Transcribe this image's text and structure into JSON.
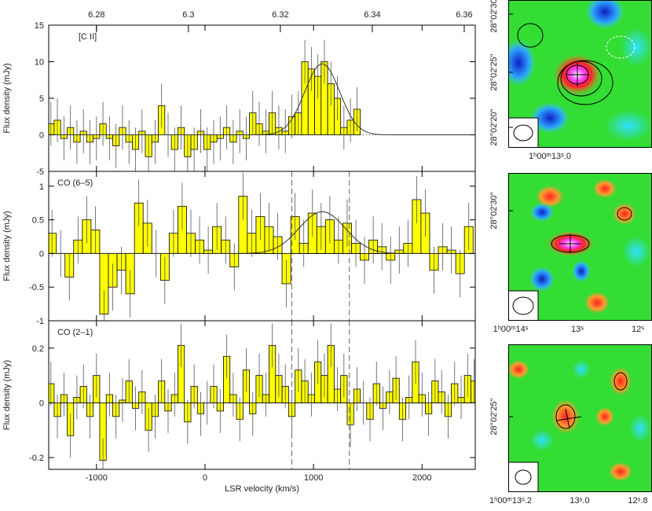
{
  "chart_data": [
    {
      "type": "histogram",
      "label": "[C II]",
      "ylabel": "Flux density (mJy)",
      "x": [
        -1420,
        -1360,
        -1300,
        -1240,
        -1180,
        -1120,
        -1060,
        -1000,
        -940,
        -880,
        -820,
        -760,
        -700,
        -640,
        -580,
        -520,
        -460,
        -400,
        -340,
        -280,
        -220,
        -160,
        -100,
        -40,
        20,
        80,
        140,
        200,
        260,
        320,
        380,
        440,
        500,
        560,
        620,
        680,
        740,
        800,
        860,
        920,
        980,
        1040,
        1100,
        1160,
        1220,
        1280,
        1340,
        1400
      ],
      "values": [
        1.5,
        2,
        -0.5,
        1,
        -1,
        0.5,
        -1,
        -0.5,
        1.5,
        -0.5,
        -1.5,
        1,
        -1,
        -2,
        0.5,
        -3,
        -1,
        4,
        0,
        -2,
        1,
        -3,
        -2,
        0.5,
        -2,
        -1,
        -0.5,
        1,
        -1,
        0.5,
        -0.5,
        3,
        1.5,
        0.5,
        3,
        1,
        0.5,
        2.5,
        3,
        10,
        9,
        8,
        10,
        7,
        5,
        1,
        2,
        3.5
      ],
      "error": 3,
      "color": "#ffff00",
      "fit": {
        "amplitude": 9.7,
        "center": 1080,
        "fwhm": 380
      },
      "xlim": [
        -1440,
        2490
      ],
      "xticks": [
        -1000,
        0,
        1000,
        2000
      ],
      "x2lim": [
        6.2696,
        6.3624
      ],
      "x2ticks": [
        6.28,
        6.3,
        6.32,
        6.34,
        6.36
      ],
      "ylim": [
        -5,
        15
      ],
      "yticks": [
        -5,
        0,
        5,
        10,
        15
      ]
    },
    {
      "type": "histogram",
      "label": "CO (6–5)",
      "ylabel": "Flux density (mJy)",
      "x": [
        -1410,
        -1330,
        -1250,
        -1170,
        -1090,
        -1010,
        -930,
        -850,
        -770,
        -690,
        -610,
        -530,
        -450,
        -370,
        -290,
        -210,
        -130,
        -50,
        30,
        110,
        190,
        270,
        350,
        430,
        510,
        590,
        670,
        750,
        830,
        910,
        990,
        1070,
        1150,
        1230,
        1310,
        1390,
        1470,
        1550,
        1630,
        1710,
        1790,
        1870,
        1950,
        2030,
        2110,
        2190,
        2270,
        2350,
        2430
      ],
      "values": [
        0.3,
        0,
        -0.35,
        0.2,
        0.5,
        0.35,
        -0.9,
        -0.5,
        -0.25,
        -0.6,
        0.75,
        0.45,
        0,
        -0.4,
        0.3,
        0.7,
        0.3,
        0.2,
        0.05,
        0.4,
        0.2,
        -0.2,
        0.85,
        0.3,
        0.55,
        0.4,
        0.25,
        -0.45,
        0.55,
        0.15,
        0.6,
        0.4,
        0.5,
        0.2,
        0.45,
        0.15,
        -0.1,
        0.2,
        0.1,
        -0.1,
        0.05,
        0.15,
        0.8,
        0.6,
        -0.25,
        0.1,
        0.05,
        -0.3,
        0.4
      ],
      "error": 0.35,
      "color": "#ffff00",
      "fit": {
        "amplitude": 0.62,
        "center": 1080,
        "fwhm": 500
      },
      "vlines": [
        800,
        1330
      ],
      "xlim": [
        -1440,
        2490
      ],
      "xticks": [
        -1000,
        0,
        1000,
        2000
      ],
      "ylim": [
        -1,
        1.22
      ],
      "yticks": [
        -1,
        -0.5,
        0,
        0.5,
        1
      ]
    },
    {
      "type": "histogram",
      "label": "CO (2–1)",
      "ylabel": "Flux density (mJy)",
      "xlabel": "LSR velocity (km/s)",
      "x": [
        -1420,
        -1360,
        -1300,
        -1240,
        -1180,
        -1120,
        -1060,
        -1000,
        -940,
        -880,
        -820,
        -760,
        -700,
        -640,
        -580,
        -520,
        -460,
        -400,
        -340,
        -280,
        -220,
        -160,
        -100,
        -40,
        20,
        80,
        140,
        200,
        260,
        320,
        380,
        440,
        500,
        560,
        620,
        680,
        740,
        800,
        860,
        920,
        980,
        1040,
        1100,
        1160,
        1220,
        1280,
        1340,
        1400,
        1460,
        1520,
        1580,
        1640,
        1700,
        1760,
        1820,
        1880,
        1940,
        2000,
        2060,
        2120,
        2180,
        2240,
        2300,
        2360,
        2420,
        2480
      ],
      "values": [
        0.07,
        -0.05,
        0.03,
        -0.12,
        0.02,
        0.06,
        -0.05,
        0.1,
        -0.21,
        0.03,
        -0.05,
        0.01,
        0.08,
        -0.02,
        0.04,
        -0.1,
        -0.05,
        0.08,
        -0.03,
        0.03,
        0.21,
        -0.07,
        0.06,
        -0.04,
        0,
        0.06,
        -0.03,
        0.17,
        0.03,
        -0.06,
        0.12,
        -0.04,
        0.1,
        0.03,
        0.21,
        0.1,
        0.06,
        -0.05,
        0.12,
        0.08,
        0.03,
        0.15,
        0.1,
        0.21,
        0.05,
        0.1,
        -0.08,
        0.05,
        0,
        -0.06,
        0.07,
        -0.02,
        0.04,
        0.09,
        -0.06,
        0.02,
        0.15,
        0.03,
        -0.04,
        0.08,
        0.04,
        -0.05,
        0.07,
        0.02,
        0.1,
        0.08
      ],
      "error": 0.08,
      "color": "#ffff00",
      "vlines": [
        800,
        1330
      ],
      "xlim": [
        -1440,
        2490
      ],
      "xticks": [
        -1000,
        0,
        1000,
        2000
      ],
      "ylim": [
        -0.243,
        0.3
      ],
      "yticks": [
        -0.2,
        0,
        0.2
      ]
    }
  ],
  "maps": [
    {
      "yticks": [
        "28°02'30\"",
        "28°02'25\"",
        "28°02'20\""
      ],
      "xticks": [
        "1ʰ00ᵐ13ˢ.0"
      ]
    },
    {
      "yticks": [
        "28°02'30\""
      ],
      "xticks": [
        "1ʰ00ᵐ14ˢ",
        "13ˢ",
        "12ˢ"
      ]
    },
    {
      "yticks": [
        "28°02'25\""
      ],
      "xticks": [
        "1ʰ00ᵐ13ˢ.2",
        "13ˢ.0",
        "12ˢ.8"
      ]
    }
  ]
}
